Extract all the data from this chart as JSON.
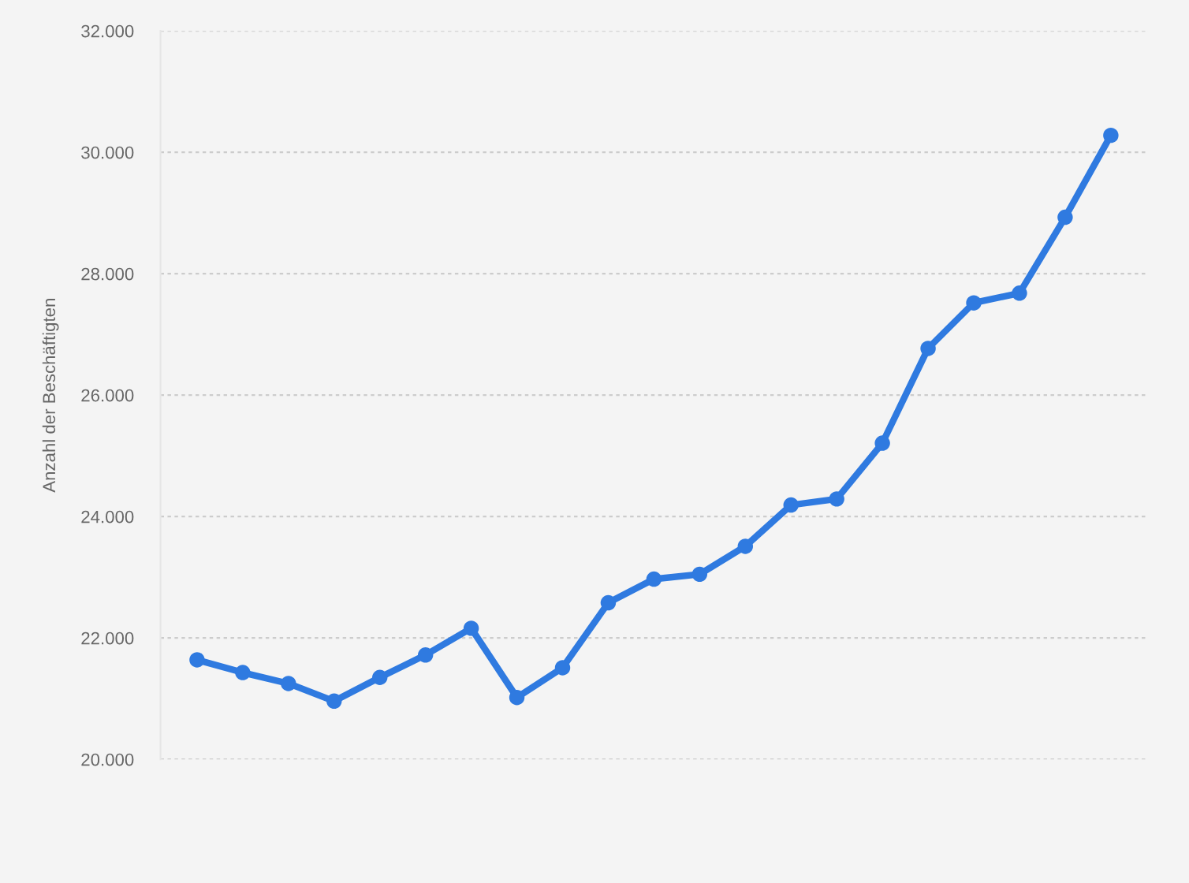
{
  "chart_data": {
    "type": "line",
    "ylabel": "Anzahl der Beschäftigten",
    "categories": [
      null,
      null,
      null,
      null,
      null,
      null,
      null,
      null,
      null,
      null,
      null,
      null,
      null,
      null,
      null,
      null,
      null,
      null,
      null,
      null,
      null
    ],
    "series": [
      {
        "color": "#2f7ae0",
        "values": [
          21640,
          21430,
          21250,
          20960,
          21350,
          21720,
          22160,
          21020,
          21510,
          22580,
          22970,
          23050,
          23510,
          24190,
          24290,
          25210,
          26770,
          27520,
          27680,
          28930,
          30280
        ]
      }
    ],
    "ylim": [
      20000,
      32000
    ],
    "yticks": [
      {
        "value": 20000,
        "label": "20.000"
      },
      {
        "value": 22000,
        "label": "22.000"
      },
      {
        "value": 24000,
        "label": "24.000"
      },
      {
        "value": 26000,
        "label": "26.000"
      },
      {
        "value": 28000,
        "label": "28.000"
      },
      {
        "value": 30000,
        "label": "30.000"
      },
      {
        "value": 32000,
        "label": "32.000"
      }
    ],
    "grid": "y",
    "marker": "circle",
    "line_style": "solid"
  }
}
